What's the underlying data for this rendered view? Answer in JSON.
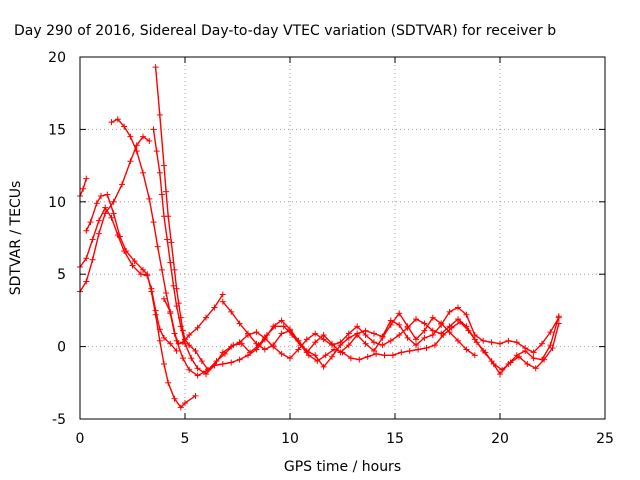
{
  "chart_data": {
    "type": "scatter",
    "title": "Day 290 of 2016, Sidereal Day-to-day VTEC variation (SDTVAR) for receiver b",
    "xlabel": "GPS time / hours",
    "ylabel": "SDTVAR / TECUs",
    "xlim": [
      0,
      25
    ],
    "ylim": [
      -5,
      20
    ],
    "xticks": [
      "0",
      "5",
      "10",
      "15",
      "20",
      "25"
    ],
    "yticks": [
      "-5",
      "0",
      "5",
      "10",
      "15",
      "20"
    ],
    "grid": true,
    "marker": "+",
    "color": "#ff0000",
    "series": [
      {
        "points": [
          [
            0.0,
            10.4
          ],
          [
            0.15,
            10.9
          ],
          [
            0.3,
            11.6
          ]
        ]
      },
      {
        "points": [
          [
            0.0,
            3.8
          ],
          [
            0.3,
            4.5
          ],
          [
            0.6,
            6.0
          ],
          [
            0.9,
            7.8
          ],
          [
            1.2,
            9.2
          ],
          [
            1.6,
            10.0
          ],
          [
            2.0,
            11.2
          ],
          [
            2.4,
            12.8
          ],
          [
            2.7,
            13.9
          ],
          [
            3.0,
            14.5
          ],
          [
            3.3,
            14.2
          ]
        ]
      },
      {
        "points": [
          [
            0.3,
            8.0
          ],
          [
            0.5,
            8.6
          ],
          [
            0.8,
            9.9
          ],
          [
            1.0,
            10.4
          ],
          [
            1.3,
            10.5
          ],
          [
            1.6,
            9.2
          ],
          [
            1.9,
            7.6
          ],
          [
            2.2,
            6.6
          ],
          [
            2.6,
            5.9
          ],
          [
            3.0,
            5.3
          ],
          [
            3.2,
            5.0
          ],
          [
            3.4,
            3.8
          ],
          [
            3.6,
            2.2
          ],
          [
            3.8,
            0.4
          ],
          [
            4.0,
            -1.2
          ],
          [
            4.2,
            -2.5
          ],
          [
            4.5,
            -3.6
          ],
          [
            4.8,
            -4.2
          ],
          [
            5.0,
            -3.9
          ],
          [
            5.5,
            -3.4
          ]
        ]
      },
      {
        "points": [
          [
            0.0,
            5.5
          ],
          [
            0.3,
            6.1
          ],
          [
            0.6,
            7.4
          ],
          [
            0.9,
            8.7
          ],
          [
            1.2,
            9.6
          ],
          [
            1.5,
            8.9
          ],
          [
            1.8,
            7.7
          ],
          [
            2.1,
            6.6
          ],
          [
            2.5,
            5.6
          ],
          [
            2.9,
            5.0
          ],
          [
            3.2,
            4.9
          ],
          [
            3.4,
            4.0
          ],
          [
            3.6,
            2.5
          ],
          [
            3.8,
            1.2
          ],
          [
            4.0,
            0.6
          ],
          [
            4.3,
            0.2
          ],
          [
            4.6,
            -0.3
          ]
        ]
      },
      {
        "points": [
          [
            1.5,
            15.5
          ],
          [
            1.8,
            15.7
          ],
          [
            2.1,
            15.2
          ],
          [
            2.4,
            14.5
          ],
          [
            2.7,
            13.5
          ],
          [
            3.0,
            12.0
          ],
          [
            3.3,
            10.2
          ],
          [
            3.5,
            8.6
          ],
          [
            3.7,
            6.9
          ],
          [
            3.9,
            5.3
          ],
          [
            4.1,
            3.7
          ],
          [
            4.3,
            2.3
          ],
          [
            4.5,
            0.9
          ],
          [
            4.7,
            0.2
          ],
          [
            4.9,
            0.3
          ],
          [
            5.2,
            0.8
          ],
          [
            5.6,
            1.3
          ],
          [
            6.0,
            2.0
          ],
          [
            6.4,
            2.7
          ],
          [
            6.8,
            3.6
          ]
        ]
      },
      {
        "points": [
          [
            4.0,
            3.3
          ],
          [
            4.3,
            2.4
          ],
          [
            4.6,
            0.4
          ],
          [
            4.9,
            -0.8
          ],
          [
            5.2,
            -1.6
          ],
          [
            5.6,
            -2.0
          ],
          [
            6.0,
            -1.7
          ],
          [
            6.4,
            -1.3
          ],
          [
            6.8,
            -1.2
          ],
          [
            7.2,
            -1.1
          ],
          [
            7.6,
            -0.9
          ],
          [
            8.0,
            -0.6
          ],
          [
            8.4,
            -0.2
          ],
          [
            8.8,
            0.5
          ],
          [
            9.2,
            1.4
          ],
          [
            9.6,
            1.8
          ],
          [
            10.0,
            1.2
          ],
          [
            10.4,
            0.4
          ],
          [
            10.8,
            -0.3
          ],
          [
            11.2,
            -0.6
          ],
          [
            11.6,
            -1.4
          ],
          [
            12.0,
            -0.7
          ],
          [
            12.4,
            0.1
          ],
          [
            12.8,
            0.6
          ],
          [
            13.2,
            0.9
          ],
          [
            13.6,
            1.1
          ],
          [
            14.0,
            0.9
          ],
          [
            14.4,
            0.7
          ],
          [
            14.8,
            1.8
          ],
          [
            15.2,
            1.5
          ],
          [
            15.6,
            0.6
          ],
          [
            16.0,
            0.1
          ],
          [
            16.4,
            0.6
          ],
          [
            16.8,
            0.8
          ],
          [
            17.2,
            1.5
          ],
          [
            17.6,
            2.4
          ],
          [
            18.0,
            2.7
          ],
          [
            18.4,
            2.2
          ],
          [
            18.8,
            0.8
          ],
          [
            19.2,
            0.4
          ],
          [
            19.6,
            0.3
          ],
          [
            20.0,
            0.2
          ],
          [
            20.4,
            0.4
          ],
          [
            20.8,
            0.3
          ],
          [
            21.2,
            -0.1
          ],
          [
            21.6,
            -0.4
          ],
          [
            22.0,
            0.2
          ],
          [
            22.4,
            1.0
          ],
          [
            22.8,
            2.0
          ]
        ]
      },
      {
        "points": [
          [
            3.6,
            19.3
          ],
          [
            3.8,
            16.0
          ],
          [
            4.0,
            12.5
          ],
          [
            4.1,
            10.7
          ],
          [
            4.2,
            9.0
          ],
          [
            4.35,
            7.2
          ],
          [
            4.5,
            5.3
          ],
          [
            4.6,
            4.0
          ],
          [
            4.7,
            3.0
          ],
          [
            4.8,
            2.0
          ],
          [
            4.9,
            1.1
          ],
          [
            5.0,
            0.5
          ],
          [
            5.2,
            0.1
          ],
          [
            5.5,
            -0.3
          ],
          [
            5.8,
            -1.0
          ],
          [
            6.1,
            -1.6
          ],
          [
            6.5,
            -1.0
          ],
          [
            6.9,
            -0.5
          ],
          [
            7.3,
            0.1
          ],
          [
            7.7,
            0.2
          ],
          [
            8.1,
            -0.4
          ],
          [
            8.5,
            0.1
          ],
          [
            8.9,
            0.8
          ],
          [
            9.3,
            1.4
          ],
          [
            9.7,
            1.4
          ],
          [
            10.1,
            0.8
          ],
          [
            10.5,
            0.1
          ],
          [
            10.9,
            -0.6
          ],
          [
            11.3,
            -1.0
          ],
          [
            11.7,
            -0.6
          ],
          [
            12.1,
            -0.2
          ],
          [
            12.5,
            -0.4
          ],
          [
            12.9,
            -0.8
          ],
          [
            13.3,
            -0.9
          ],
          [
            13.7,
            -0.7
          ],
          [
            14.1,
            -0.5
          ],
          [
            14.5,
            -0.6
          ],
          [
            14.9,
            -0.6
          ],
          [
            15.3,
            -0.4
          ],
          [
            15.7,
            -0.3
          ],
          [
            16.1,
            -0.2
          ],
          [
            16.5,
            -0.1
          ],
          [
            16.9,
            0.1
          ],
          [
            17.3,
            0.8
          ],
          [
            17.7,
            1.3
          ],
          [
            18.1,
            1.7
          ],
          [
            18.5,
            1.1
          ],
          [
            18.9,
            0.3
          ],
          [
            19.3,
            -0.4
          ],
          [
            19.7,
            -1.2
          ],
          [
            20.1,
            -1.6
          ],
          [
            20.5,
            -1.1
          ],
          [
            20.9,
            -0.7
          ],
          [
            21.3,
            -1.2
          ],
          [
            21.7,
            -1.5
          ],
          [
            22.1,
            -0.9
          ],
          [
            22.5,
            -0.1
          ],
          [
            22.8,
            1.6
          ]
        ]
      },
      {
        "points": [
          [
            3.5,
            15.0
          ],
          [
            3.65,
            13.5
          ],
          [
            3.8,
            12.0
          ],
          [
            3.9,
            10.5
          ],
          [
            4.0,
            9.0
          ],
          [
            4.15,
            7.4
          ],
          [
            4.3,
            5.8
          ],
          [
            4.45,
            4.2
          ],
          [
            4.6,
            2.8
          ],
          [
            4.8,
            1.4
          ],
          [
            5.0,
            0.2
          ],
          [
            5.3,
            -0.8
          ],
          [
            5.6,
            -1.5
          ],
          [
            6.0,
            -1.9
          ],
          [
            6.4,
            -1.3
          ],
          [
            6.8,
            -0.4
          ],
          [
            7.2,
            0.0
          ],
          [
            7.6,
            0.3
          ],
          [
            8.0,
            0.8
          ],
          [
            8.4,
            1.0
          ],
          [
            8.8,
            0.6
          ],
          [
            9.2,
            0.0
          ],
          [
            9.6,
            -0.5
          ],
          [
            10.0,
            -0.8
          ],
          [
            10.4,
            -0.2
          ],
          [
            10.8,
            0.5
          ],
          [
            11.2,
            0.9
          ],
          [
            11.6,
            0.5
          ],
          [
            12.0,
            0.1
          ],
          [
            12.4,
            0.3
          ],
          [
            12.8,
            0.9
          ],
          [
            13.2,
            1.4
          ],
          [
            13.6,
            0.8
          ],
          [
            14.0,
            0.3
          ],
          [
            14.4,
            0.1
          ],
          [
            14.8,
            0.4
          ],
          [
            15.2,
            0.8
          ],
          [
            15.6,
            1.3
          ],
          [
            16.0,
            1.9
          ],
          [
            16.4,
            1.6
          ],
          [
            16.8,
            1.1
          ],
          [
            17.2,
            0.9
          ],
          [
            17.6,
            1.4
          ],
          [
            18.0,
            1.9
          ],
          [
            18.4,
            1.4
          ],
          [
            18.8,
            0.5
          ],
          [
            19.2,
            -0.3
          ],
          [
            19.6,
            -1.0
          ],
          [
            20.0,
            -1.9
          ],
          [
            20.4,
            -1.2
          ],
          [
            20.8,
            -0.6
          ],
          [
            21.2,
            -0.3
          ],
          [
            21.6,
            -0.8
          ],
          [
            22.0,
            -0.9
          ],
          [
            22.4,
            0.1
          ],
          [
            22.8,
            2.1
          ]
        ]
      },
      {
        "points": [
          [
            6.8,
            3.1
          ],
          [
            7.2,
            2.4
          ],
          [
            7.6,
            1.6
          ],
          [
            8.0,
            0.9
          ],
          [
            8.4,
            0.2
          ],
          [
            8.8,
            -0.2
          ],
          [
            9.2,
            0.1
          ],
          [
            9.6,
            0.9
          ],
          [
            10.0,
            1.1
          ],
          [
            10.4,
            0.4
          ],
          [
            10.8,
            -0.4
          ],
          [
            11.2,
            0.3
          ],
          [
            11.6,
            0.8
          ],
          [
            12.0,
            0.2
          ],
          [
            12.4,
            -0.4
          ],
          [
            12.8,
            0.1
          ],
          [
            13.2,
            0.8
          ],
          [
            13.6,
            0.2
          ],
          [
            14.0,
            -0.3
          ],
          [
            14.4,
            0.6
          ],
          [
            14.8,
            1.5
          ],
          [
            15.2,
            2.3
          ],
          [
            15.6,
            1.4
          ],
          [
            16.0,
            0.5
          ],
          [
            16.4,
            1.1
          ],
          [
            16.8,
            2.0
          ],
          [
            17.2,
            1.6
          ],
          [
            17.6,
            1.0
          ],
          [
            18.0,
            0.4
          ],
          [
            18.4,
            -0.2
          ],
          [
            18.8,
            -0.6
          ]
        ]
      }
    ]
  }
}
